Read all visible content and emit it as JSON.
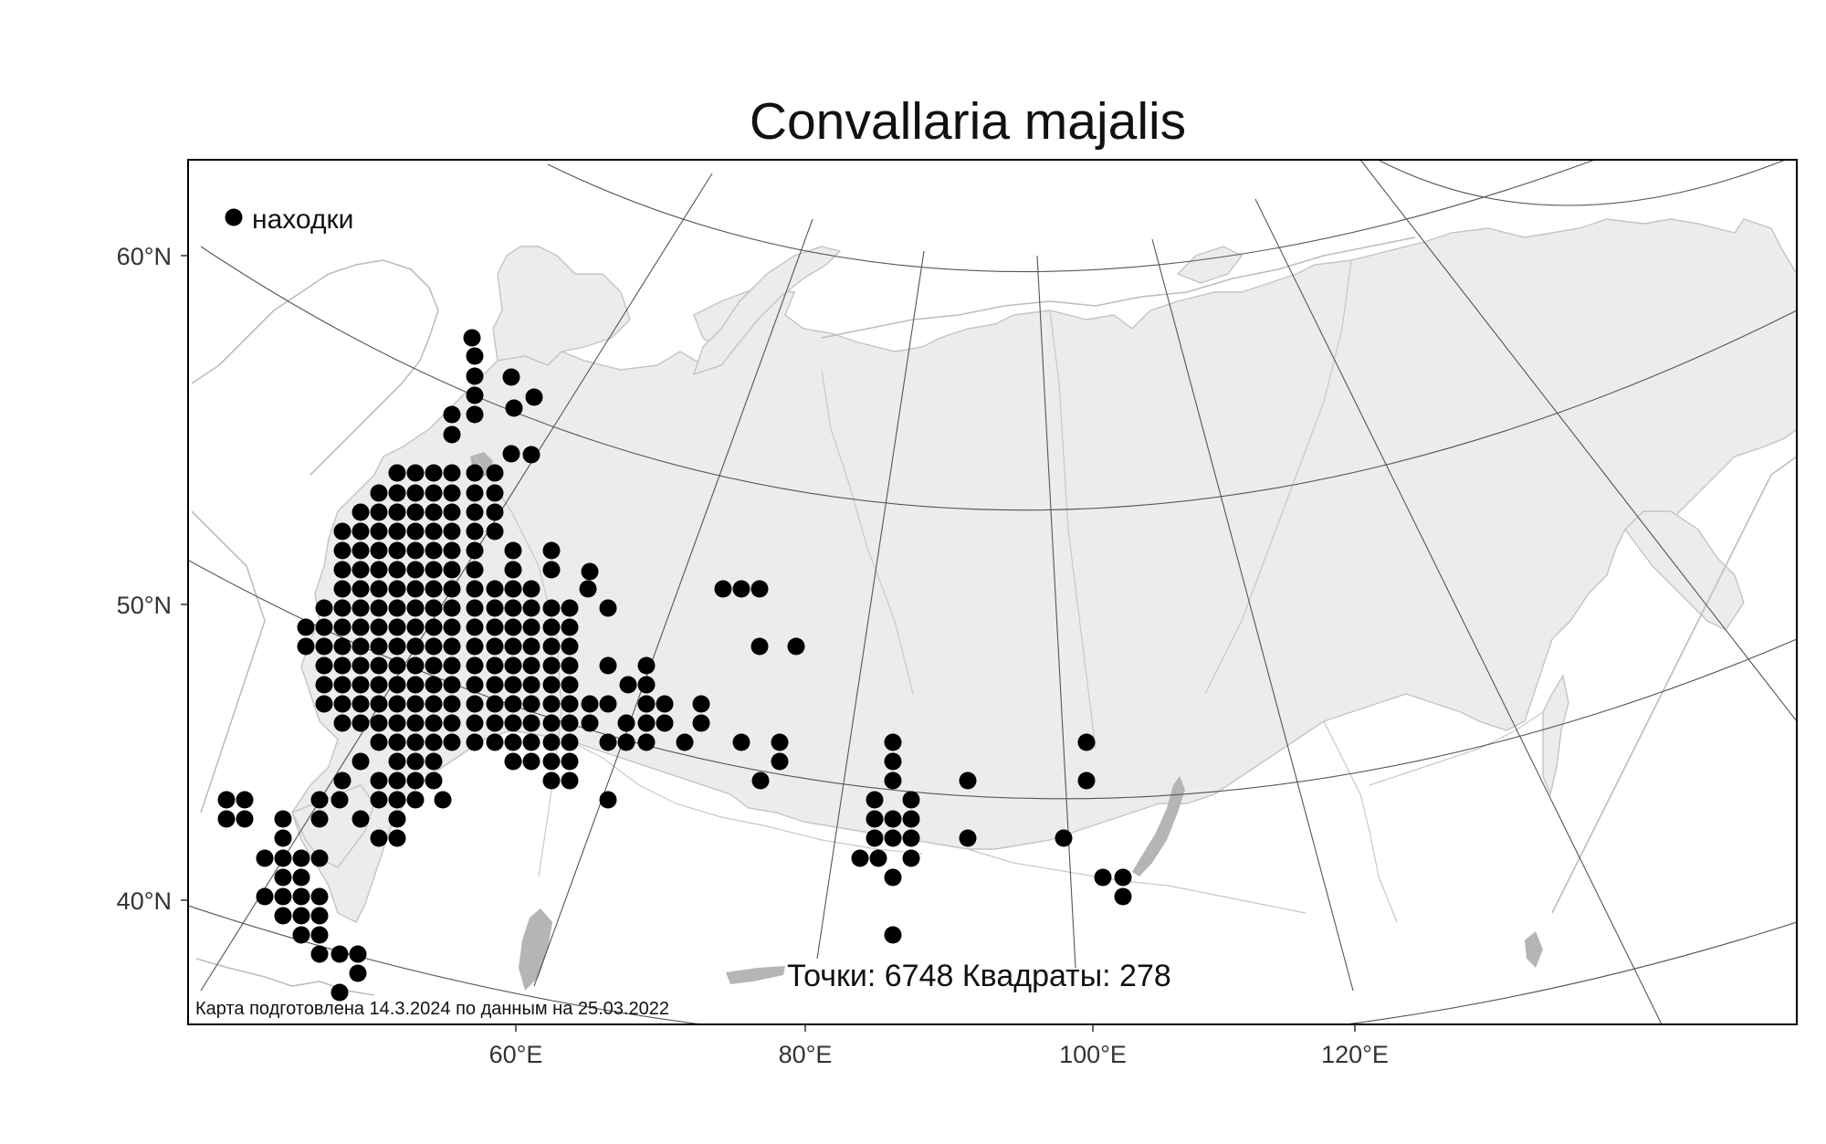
{
  "map": {
    "title": "Convallaria majalis",
    "legend_label": "находки",
    "stats_text": "Точки: 6748 Квадраты: 278",
    "credit_text": "Карта подготовлена 14.3.2024 по данным на 25.03.2022",
    "lat_labels": [
      "60°N",
      "50°N",
      "40°N"
    ],
    "lon_labels": [
      "60°E",
      "80°E",
      "100°E",
      "120°E"
    ],
    "marker_color": "#000000",
    "range_fill_color": "#ececec"
  },
  "chart_data": {
    "type": "scatter",
    "title": "Convallaria majalis",
    "legend": [
      {
        "name": "находки",
        "color": "#000000"
      }
    ],
    "x_axis_ticks": [
      "60°E",
      "80°E",
      "100°E",
      "120°E"
    ],
    "y_axis_ticks": [
      "60°N",
      "50°N",
      "40°N"
    ],
    "points_total": 6748,
    "squares_total": 278
  }
}
